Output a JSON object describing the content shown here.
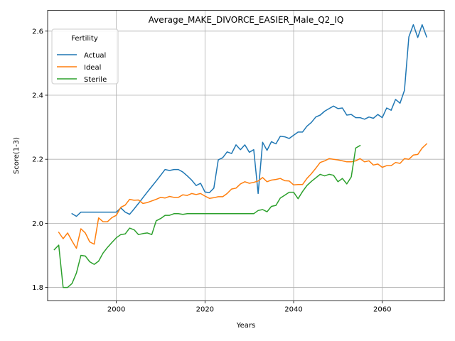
{
  "chart_data": {
    "type": "line",
    "title": "Average_MAKE_DIVORCE_EASIER_Male_Q2_IQ",
    "xlabel": "Years",
    "ylabel": "Score(1-3)",
    "xlim": [
      1984.5,
      2074
    ],
    "ylim": [
      1.758,
      2.665
    ],
    "xticks": [
      2000,
      2020,
      2040,
      2060
    ],
    "yticks": [
      1.8,
      2.0,
      2.2,
      2.4,
      2.6
    ],
    "ytick_labels": [
      "1.8",
      "2.0",
      "2.2",
      "2.4",
      "2.6"
    ],
    "grid": true,
    "legend": {
      "title": "Fertility",
      "placement": "top-left"
    },
    "series": [
      {
        "name": "Actual",
        "color": "#1f77b4",
        "x": [
          1990,
          1991,
          1992,
          1993,
          1994,
          1995,
          1996,
          1997,
          1998,
          1999,
          2000,
          2001,
          2002,
          2003,
          2004,
          2005,
          2006,
          2007,
          2008,
          2009,
          2010,
          2011,
          2012,
          2013,
          2014,
          2015,
          2016,
          2017,
          2018,
          2019,
          2020,
          2021,
          2022,
          2023,
          2024,
          2025,
          2026,
          2027,
          2028,
          2029,
          2030,
          2031,
          2032,
          2033,
          2034,
          2035,
          2036,
          2037,
          2038,
          2039,
          2040,
          2041,
          2042,
          2043,
          2044,
          2045,
          2046,
          2047,
          2048,
          2049,
          2050,
          2051,
          2052,
          2053,
          2054,
          2055,
          2056,
          2057,
          2058,
          2059,
          2060,
          2061,
          2062,
          2063,
          2064,
          2065,
          2066,
          2067,
          2068,
          2069,
          2070
        ],
        "y": [
          2.03,
          2.022,
          2.035,
          2.035,
          2.035,
          2.035,
          2.035,
          2.035,
          2.035,
          2.035,
          2.035,
          2.048,
          2.035,
          2.028,
          2.045,
          2.062,
          2.08,
          2.098,
          2.115,
          2.132,
          2.15,
          2.168,
          2.165,
          2.168,
          2.168,
          2.16,
          2.148,
          2.135,
          2.118,
          2.125,
          2.098,
          2.096,
          2.11,
          2.198,
          2.205,
          2.223,
          2.218,
          2.245,
          2.23,
          2.245,
          2.222,
          2.23,
          2.093,
          2.253,
          2.228,
          2.255,
          2.248,
          2.272,
          2.27,
          2.265,
          2.275,
          2.285,
          2.285,
          2.303,
          2.315,
          2.332,
          2.338,
          2.35,
          2.358,
          2.366,
          2.358,
          2.36,
          2.338,
          2.34,
          2.33,
          2.33,
          2.325,
          2.332,
          2.328,
          2.34,
          2.33,
          2.36,
          2.353,
          2.387,
          2.375,
          2.415,
          2.582,
          2.62,
          2.58,
          2.62,
          2.582
        ]
      },
      {
        "name": "Ideal",
        "color": "#ff7f0e",
        "x": [
          1987,
          1988,
          1989,
          1990,
          1991,
          1992,
          1993,
          1994,
          1995,
          1996,
          1997,
          1998,
          1999,
          2000,
          2001,
          2002,
          2003,
          2004,
          2005,
          2006,
          2007,
          2008,
          2009,
          2010,
          2011,
          2012,
          2013,
          2014,
          2015,
          2016,
          2017,
          2018,
          2019,
          2020,
          2021,
          2022,
          2023,
          2024,
          2025,
          2026,
          2027,
          2028,
          2029,
          2030,
          2031,
          2032,
          2033,
          2034,
          2035,
          2036,
          2037,
          2038,
          2039,
          2040,
          2041,
          2042,
          2043,
          2044,
          2045,
          2046,
          2047,
          2048,
          2049,
          2050,
          2051,
          2052,
          2053,
          2054,
          2055,
          2056,
          2057,
          2058,
          2059,
          2060,
          2061,
          2062,
          2063,
          2064,
          2065,
          2066,
          2067,
          2068,
          2069,
          2070
        ],
        "y": [
          1.972,
          1.952,
          1.97,
          1.945,
          1.922,
          1.983,
          1.97,
          1.942,
          1.935,
          2.017,
          2.005,
          2.005,
          2.018,
          2.025,
          2.05,
          2.057,
          2.075,
          2.072,
          2.073,
          2.062,
          2.065,
          2.07,
          2.075,
          2.081,
          2.079,
          2.084,
          2.081,
          2.081,
          2.089,
          2.087,
          2.093,
          2.09,
          2.093,
          2.085,
          2.078,
          2.08,
          2.083,
          2.083,
          2.093,
          2.107,
          2.11,
          2.123,
          2.13,
          2.125,
          2.128,
          2.132,
          2.143,
          2.13,
          2.135,
          2.137,
          2.14,
          2.133,
          2.132,
          2.12,
          2.121,
          2.121,
          2.14,
          2.155,
          2.172,
          2.19,
          2.195,
          2.202,
          2.2,
          2.198,
          2.195,
          2.192,
          2.192,
          2.195,
          2.202,
          2.192,
          2.195,
          2.182,
          2.185,
          2.175,
          2.18,
          2.18,
          2.19,
          2.187,
          2.202,
          2.2,
          2.213,
          2.215,
          2.235,
          2.248
        ]
      },
      {
        "name": "Sterile",
        "color": "#2ca02c",
        "x": [
          1986,
          1987,
          1988,
          1989,
          1990,
          1991,
          1992,
          1993,
          1994,
          1995,
          1996,
          1997,
          1998,
          1999,
          2000,
          2001,
          2002,
          2003,
          2004,
          2005,
          2006,
          2007,
          2008,
          2009,
          2010,
          2011,
          2012,
          2013,
          2014,
          2015,
          2016,
          2017,
          2018,
          2019,
          2020,
          2021,
          2022,
          2023,
          2024,
          2025,
          2026,
          2027,
          2028,
          2029,
          2030,
          2031,
          2032,
          2033,
          2034,
          2035,
          2036,
          2037,
          2038,
          2039,
          2040,
          2041,
          2042,
          2043,
          2044,
          2045,
          2046,
          2047,
          2048,
          2049,
          2050,
          2051,
          2052,
          2053,
          2054,
          2055
        ],
        "y": [
          1.918,
          1.932,
          1.8,
          1.8,
          1.812,
          1.845,
          1.9,
          1.898,
          1.88,
          1.872,
          1.882,
          1.907,
          1.925,
          1.94,
          1.955,
          1.965,
          1.967,
          1.985,
          1.98,
          1.965,
          1.968,
          1.97,
          1.965,
          2.008,
          2.015,
          2.025,
          2.025,
          2.03,
          2.03,
          2.028,
          2.03,
          2.03,
          2.03,
          2.03,
          2.03,
          2.03,
          2.03,
          2.03,
          2.03,
          2.03,
          2.03,
          2.03,
          2.03,
          2.03,
          2.03,
          2.03,
          2.04,
          2.043,
          2.036,
          2.053,
          2.056,
          2.079,
          2.088,
          2.097,
          2.097,
          2.077,
          2.099,
          2.118,
          2.131,
          2.142,
          2.153,
          2.148,
          2.153,
          2.15,
          2.13,
          2.14,
          2.123,
          2.145,
          2.235,
          2.243
        ]
      }
    ]
  }
}
